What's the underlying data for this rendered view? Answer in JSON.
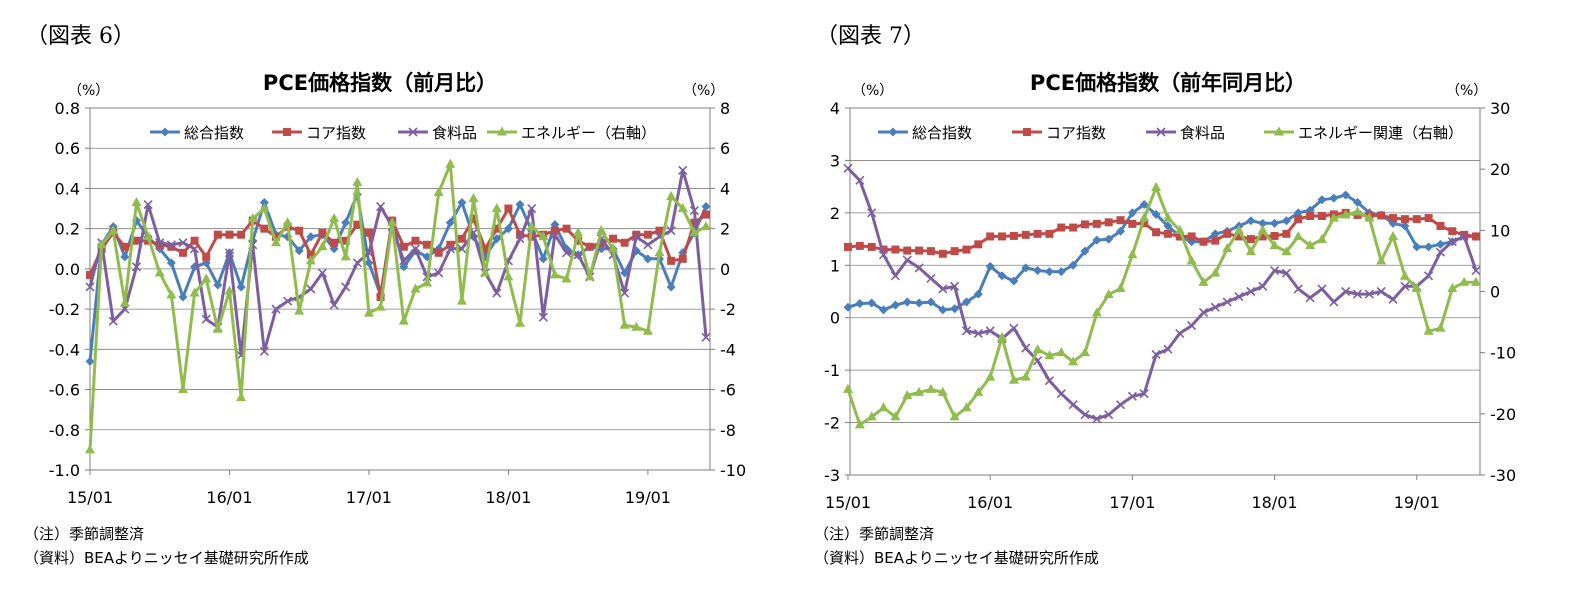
{
  "panels": [
    {
      "label": "（図表 6）",
      "note_adjust": "（注）季節調整済",
      "note_source": "（資料）BEAよりニッセイ基礎研究所作成"
    },
    {
      "label": "（図表 7）",
      "note_adjust": "（注）季節調整済",
      "note_source": "（資料）BEAよりニッセイ基礎研究所作成"
    }
  ],
  "chart_data": [
    {
      "type": "line",
      "title": "PCE価格指数（前月比）",
      "left_unit": "（%）",
      "right_unit": "（%）",
      "ylim_left": [
        -1.0,
        0.8
      ],
      "ylim_right": [
        -10,
        8
      ],
      "yticks_left": [
        "0.8",
        "0.6",
        "0.4",
        "0.2",
        "0.0",
        "-0.2",
        "-0.4",
        "-0.6",
        "-0.8",
        "-1.0"
      ],
      "yticks_right": [
        "8",
        "6",
        "4",
        "2",
        "0",
        "-2",
        "-4",
        "-6",
        "-8",
        "-10"
      ],
      "xticks": [
        "15/01",
        "16/01",
        "17/01",
        "18/01",
        "19/01"
      ],
      "grid": true,
      "legend_position": "top",
      "series": [
        {
          "name": "総合指数",
          "axis": "left",
          "color": "#4a7ebb",
          "marker": "diamond",
          "values": [
            -0.46,
            0.12,
            0.21,
            0.06,
            0.24,
            0.16,
            0.1,
            0.03,
            -0.14,
            0.01,
            0.03,
            -0.08,
            0.08,
            -0.09,
            0.14,
            0.33,
            0.17,
            0.16,
            0.09,
            0.16,
            0.17,
            0.1,
            0.23,
            0.37,
            0.03,
            -0.13,
            0.24,
            0.01,
            0.09,
            0.06,
            0.1,
            0.23,
            0.33,
            0.16,
            0.06,
            0.15,
            0.2,
            0.32,
            0.19,
            0.05,
            0.22,
            0.1,
            0.07,
            0.11,
            0.1,
            0.1,
            -0.02,
            0.09,
            0.05,
            0.05,
            -0.09,
            0.08,
            0.18,
            0.31
          ]
        },
        {
          "name": "コア指数",
          "axis": "left",
          "color": "#be4b48",
          "marker": "square",
          "values": [
            -0.03,
            0.1,
            0.18,
            0.11,
            0.14,
            0.14,
            0.12,
            0.11,
            0.08,
            0.14,
            0.06,
            0.17,
            0.17,
            0.17,
            0.24,
            0.2,
            0.16,
            0.21,
            0.19,
            0.07,
            0.18,
            0.13,
            0.14,
            0.22,
            0.18,
            -0.14,
            0.24,
            0.11,
            0.14,
            0.12,
            0.08,
            0.12,
            0.15,
            0.25,
            0.1,
            0.2,
            0.3,
            0.17,
            0.16,
            0.17,
            0.19,
            0.2,
            0.14,
            0.11,
            0.13,
            0.15,
            0.13,
            0.17,
            0.17,
            0.19,
            0.04,
            0.05,
            0.23,
            0.27
          ]
        },
        {
          "name": "食料品",
          "axis": "left",
          "color": "#7d5fa0",
          "marker": "x",
          "values": [
            -0.09,
            0.13,
            -0.26,
            -0.2,
            0.01,
            0.32,
            0.13,
            0.12,
            0.13,
            0.1,
            -0.25,
            -0.29,
            0.08,
            -0.43,
            0.12,
            -0.41,
            -0.2,
            -0.16,
            -0.14,
            -0.1,
            -0.02,
            -0.18,
            -0.09,
            0.03,
            0.08,
            0.31,
            0.21,
            0.04,
            0.1,
            -0.04,
            -0.02,
            0.1,
            0.1,
            0.18,
            -0.02,
            -0.12,
            0.04,
            0.15,
            0.3,
            -0.24,
            0.17,
            0.08,
            0.07,
            -0.04,
            0.15,
            0.07,
            -0.12,
            0.16,
            0.12,
            0.16,
            0.19,
            0.49,
            0.29,
            -0.34
          ]
        },
        {
          "name": "エネルギー（右軸）",
          "axis": "right",
          "color": "#8fbc4d",
          "marker": "triangle",
          "values": [
            -9.0,
            1.2,
            1.9,
            -1.7,
            3.3,
            1.6,
            -0.2,
            -1.3,
            -6.0,
            -1.2,
            -0.5,
            -3.0,
            -1.1,
            -6.4,
            2.5,
            3.0,
            1.3,
            2.3,
            -2.1,
            0.4,
            1.1,
            2.5,
            0.6,
            4.3,
            -2.2,
            -1.9,
            2.3,
            -2.6,
            -1.0,
            -0.7,
            3.8,
            5.2,
            -1.6,
            3.5,
            -0.2,
            3.0,
            -0.4,
            -2.7,
            2.1,
            1.6,
            -0.3,
            -0.5,
            1.8,
            -0.4,
            1.9,
            1.0,
            -2.8,
            -2.9,
            -3.1,
            0.8,
            3.6,
            3.0,
            1.8,
            2.1
          ]
        }
      ]
    },
    {
      "type": "line",
      "title": "PCE価格指数（前年同月比）",
      "left_unit": "（%）",
      "right_unit": "（%）",
      "ylim_left": [
        -3,
        4
      ],
      "ylim_right": [
        -30,
        30
      ],
      "yticks_left": [
        "4",
        "3",
        "2",
        "1",
        "0",
        "-1",
        "-2",
        "-3"
      ],
      "yticks_right": [
        "30",
        "20",
        "10",
        "0",
        "-10",
        "-20",
        "-30"
      ],
      "xticks": [
        "15/01",
        "16/01",
        "17/01",
        "18/01",
        "19/01"
      ],
      "grid": true,
      "legend_position": "top",
      "series": [
        {
          "name": "総合指数",
          "axis": "left",
          "color": "#4a7ebb",
          "marker": "diamond",
          "values": [
            0.2,
            0.27,
            0.28,
            0.15,
            0.24,
            0.3,
            0.28,
            0.3,
            0.15,
            0.17,
            0.3,
            0.45,
            0.98,
            0.8,
            0.7,
            0.95,
            0.9,
            0.88,
            0.88,
            1.0,
            1.27,
            1.48,
            1.5,
            1.65,
            2.0,
            2.16,
            1.97,
            1.75,
            1.55,
            1.45,
            1.45,
            1.6,
            1.65,
            1.75,
            1.85,
            1.8,
            1.8,
            1.85,
            2.0,
            2.05,
            2.25,
            2.28,
            2.34,
            2.2,
            2.0,
            1.96,
            1.8,
            1.75,
            1.35,
            1.35,
            1.4,
            1.45,
            1.55,
            1.55
          ]
        },
        {
          "name": "コア指数",
          "axis": "left",
          "color": "#be4b48",
          "marker": "square",
          "values": [
            1.35,
            1.37,
            1.35,
            1.3,
            1.3,
            1.28,
            1.28,
            1.27,
            1.22,
            1.27,
            1.3,
            1.4,
            1.55,
            1.55,
            1.56,
            1.58,
            1.6,
            1.6,
            1.72,
            1.72,
            1.78,
            1.79,
            1.82,
            1.86,
            1.79,
            1.8,
            1.63,
            1.6,
            1.55,
            1.55,
            1.45,
            1.47,
            1.6,
            1.55,
            1.5,
            1.55,
            1.56,
            1.6,
            1.88,
            1.94,
            1.94,
            1.97,
            2.0,
            1.96,
            1.95,
            1.95,
            1.9,
            1.88,
            1.88,
            1.9,
            1.75,
            1.65,
            1.58,
            1.55
          ]
        },
        {
          "name": "食料品",
          "axis": "left",
          "color": "#7d5fa0",
          "marker": "x",
          "values": [
            2.85,
            2.62,
            2.0,
            1.2,
            0.8,
            1.1,
            0.95,
            0.75,
            0.55,
            0.6,
            -0.25,
            -0.3,
            -0.25,
            -0.4,
            -0.2,
            -0.58,
            -0.82,
            -1.2,
            -1.45,
            -1.66,
            -1.85,
            -1.93,
            -1.85,
            -1.66,
            -1.5,
            -1.45,
            -0.7,
            -0.6,
            -0.3,
            -0.15,
            0.1,
            0.2,
            0.3,
            0.4,
            0.5,
            0.6,
            0.9,
            0.85,
            0.55,
            0.38,
            0.55,
            0.3,
            0.5,
            0.45,
            0.45,
            0.5,
            0.35,
            0.6,
            0.6,
            0.8,
            1.25,
            1.45,
            1.55,
            0.9
          ]
        },
        {
          "name": "エネルギー関連（右軸）",
          "axis": "right",
          "color": "#8fbc4d",
          "marker": "triangle",
          "values": [
            -16.0,
            -21.8,
            -20.5,
            -19.0,
            -20.5,
            -17.0,
            -16.5,
            -16.0,
            -16.5,
            -20.5,
            -19.0,
            -16.5,
            -14.0,
            -7.5,
            -14.5,
            -14.0,
            -9.5,
            -10.5,
            -10.0,
            -11.5,
            -10.0,
            -3.5,
            -0.5,
            0.5,
            6.0,
            12.0,
            17.0,
            12.0,
            10.0,
            5.0,
            1.5,
            3.0,
            7.0,
            10.0,
            6.5,
            10.0,
            7.5,
            6.5,
            9.0,
            7.5,
            8.5,
            12.0,
            12.5,
            13.0,
            12.0,
            5.0,
            9.0,
            2.5,
            0.5,
            -6.5,
            -6.0,
            0.5,
            1.5,
            1.5
          ]
        }
      ]
    }
  ]
}
